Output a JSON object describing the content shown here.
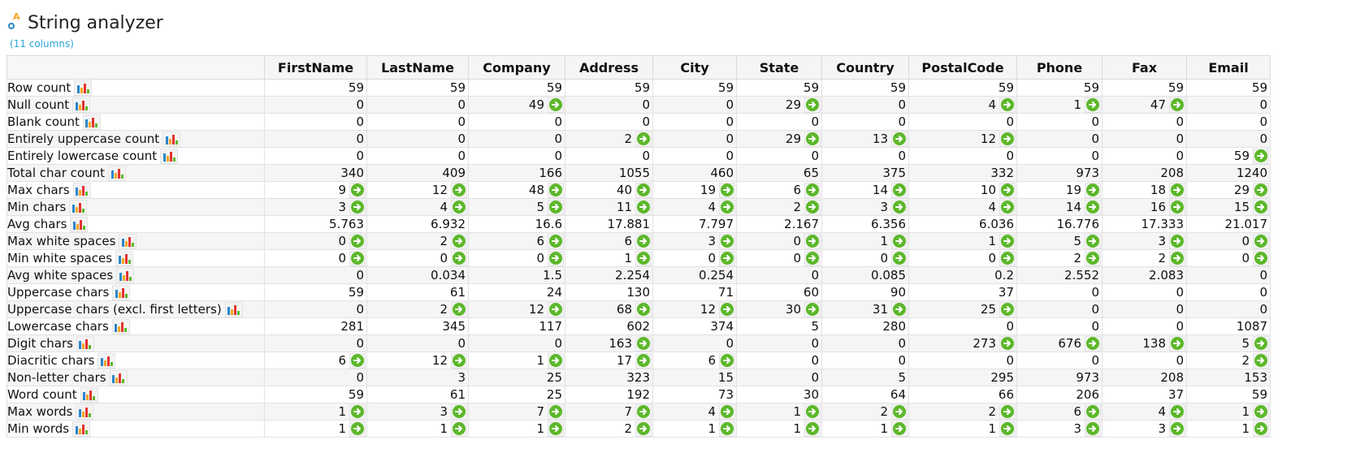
{
  "app": {
    "title": "String analyzer",
    "subtitle": "(11 columns)"
  },
  "columns": [
    "FirstName",
    "LastName",
    "Company",
    "Address",
    "City",
    "State",
    "Country",
    "PostalCode",
    "Phone",
    "Fax",
    "Email"
  ],
  "rows": [
    {
      "label": "Row count",
      "values": [
        "59",
        "59",
        "59",
        "59",
        "59",
        "59",
        "59",
        "59",
        "59",
        "59",
        "59"
      ],
      "links": [
        0,
        0,
        0,
        0,
        0,
        0,
        0,
        0,
        0,
        0,
        0
      ]
    },
    {
      "label": "Null count",
      "values": [
        "0",
        "0",
        "49",
        "0",
        "0",
        "29",
        "0",
        "4",
        "1",
        "47",
        "0"
      ],
      "links": [
        0,
        0,
        1,
        0,
        0,
        1,
        0,
        1,
        1,
        1,
        0
      ]
    },
    {
      "label": "Blank count",
      "values": [
        "0",
        "0",
        "0",
        "0",
        "0",
        "0",
        "0",
        "0",
        "0",
        "0",
        "0"
      ],
      "links": [
        0,
        0,
        0,
        0,
        0,
        0,
        0,
        0,
        0,
        0,
        0
      ]
    },
    {
      "label": "Entirely uppercase count",
      "values": [
        "0",
        "0",
        "0",
        "2",
        "0",
        "29",
        "13",
        "12",
        "0",
        "0",
        "0"
      ],
      "links": [
        0,
        0,
        0,
        1,
        0,
        1,
        1,
        1,
        0,
        0,
        0
      ]
    },
    {
      "label": "Entirely lowercase count",
      "values": [
        "0",
        "0",
        "0",
        "0",
        "0",
        "0",
        "0",
        "0",
        "0",
        "0",
        "59"
      ],
      "links": [
        0,
        0,
        0,
        0,
        0,
        0,
        0,
        0,
        0,
        0,
        1
      ]
    },
    {
      "label": "Total char count",
      "values": [
        "340",
        "409",
        "166",
        "1055",
        "460",
        "65",
        "375",
        "332",
        "973",
        "208",
        "1240"
      ],
      "links": [
        0,
        0,
        0,
        0,
        0,
        0,
        0,
        0,
        0,
        0,
        0
      ]
    },
    {
      "label": "Max chars",
      "values": [
        "9",
        "12",
        "48",
        "40",
        "19",
        "6",
        "14",
        "10",
        "19",
        "18",
        "29"
      ],
      "links": [
        1,
        1,
        1,
        1,
        1,
        1,
        1,
        1,
        1,
        1,
        1
      ]
    },
    {
      "label": "Min chars",
      "values": [
        "3",
        "4",
        "5",
        "11",
        "4",
        "2",
        "3",
        "4",
        "14",
        "16",
        "15"
      ],
      "links": [
        1,
        1,
        1,
        1,
        1,
        1,
        1,
        1,
        1,
        1,
        1
      ]
    },
    {
      "label": "Avg chars",
      "values": [
        "5.763",
        "6.932",
        "16.6",
        "17.881",
        "7.797",
        "2.167",
        "6.356",
        "6.036",
        "16.776",
        "17.333",
        "21.017"
      ],
      "links": [
        0,
        0,
        0,
        0,
        0,
        0,
        0,
        0,
        0,
        0,
        0
      ]
    },
    {
      "label": "Max white spaces",
      "values": [
        "0",
        "2",
        "6",
        "6",
        "3",
        "0",
        "1",
        "1",
        "5",
        "3",
        "0"
      ],
      "links": [
        1,
        1,
        1,
        1,
        1,
        1,
        1,
        1,
        1,
        1,
        1
      ]
    },
    {
      "label": "Min white spaces",
      "values": [
        "0",
        "0",
        "0",
        "1",
        "0",
        "0",
        "0",
        "0",
        "2",
        "2",
        "0"
      ],
      "links": [
        1,
        1,
        1,
        1,
        1,
        1,
        1,
        1,
        1,
        1,
        1
      ]
    },
    {
      "label": "Avg white spaces",
      "values": [
        "0",
        "0.034",
        "1.5",
        "2.254",
        "0.254",
        "0",
        "0.085",
        "0.2",
        "2.552",
        "2.083",
        "0"
      ],
      "links": [
        0,
        0,
        0,
        0,
        0,
        0,
        0,
        0,
        0,
        0,
        0
      ]
    },
    {
      "label": "Uppercase chars",
      "values": [
        "59",
        "61",
        "24",
        "130",
        "71",
        "60",
        "90",
        "37",
        "0",
        "0",
        "0"
      ],
      "links": [
        0,
        0,
        0,
        0,
        0,
        0,
        0,
        0,
        0,
        0,
        0
      ]
    },
    {
      "label": "Uppercase chars (excl. first letters)",
      "values": [
        "0",
        "2",
        "12",
        "68",
        "12",
        "30",
        "31",
        "25",
        "0",
        "0",
        "0"
      ],
      "links": [
        0,
        1,
        1,
        1,
        1,
        1,
        1,
        1,
        0,
        0,
        0
      ]
    },
    {
      "label": "Lowercase chars",
      "values": [
        "281",
        "345",
        "117",
        "602",
        "374",
        "5",
        "280",
        "0",
        "0",
        "0",
        "1087"
      ],
      "links": [
        0,
        0,
        0,
        0,
        0,
        0,
        0,
        0,
        0,
        0,
        0
      ]
    },
    {
      "label": "Digit chars",
      "values": [
        "0",
        "0",
        "0",
        "163",
        "0",
        "0",
        "0",
        "273",
        "676",
        "138",
        "5"
      ],
      "links": [
        0,
        0,
        0,
        1,
        0,
        0,
        0,
        1,
        1,
        1,
        1
      ]
    },
    {
      "label": "Diacritic chars",
      "values": [
        "6",
        "12",
        "1",
        "17",
        "6",
        "0",
        "0",
        "0",
        "0",
        "0",
        "2"
      ],
      "links": [
        1,
        1,
        1,
        1,
        1,
        0,
        0,
        0,
        0,
        0,
        1
      ]
    },
    {
      "label": "Non-letter chars",
      "values": [
        "0",
        "3",
        "25",
        "323",
        "15",
        "0",
        "5",
        "295",
        "973",
        "208",
        "153"
      ],
      "links": [
        0,
        0,
        0,
        0,
        0,
        0,
        0,
        0,
        0,
        0,
        0
      ]
    },
    {
      "label": "Word count",
      "values": [
        "59",
        "61",
        "25",
        "192",
        "73",
        "30",
        "64",
        "66",
        "206",
        "37",
        "59"
      ],
      "links": [
        0,
        0,
        0,
        0,
        0,
        0,
        0,
        0,
        0,
        0,
        0
      ]
    },
    {
      "label": "Max words",
      "values": [
        "1",
        "3",
        "7",
        "7",
        "4",
        "1",
        "2",
        "2",
        "6",
        "4",
        "1"
      ],
      "links": [
        1,
        1,
        1,
        1,
        1,
        1,
        1,
        1,
        1,
        1,
        1
      ]
    },
    {
      "label": "Min words",
      "values": [
        "1",
        "1",
        "1",
        "2",
        "1",
        "1",
        "1",
        "1",
        "3",
        "3",
        "1"
      ],
      "links": [
        1,
        1,
        1,
        1,
        1,
        1,
        1,
        1,
        1,
        1,
        1
      ]
    }
  ],
  "icons": {
    "row_chart": "bar-chart-icon",
    "drilldown": "green-arrow-right-icon"
  },
  "colors": {
    "arrow_green": "#5cb82a",
    "subtitle_blue": "#2aa6d6"
  }
}
